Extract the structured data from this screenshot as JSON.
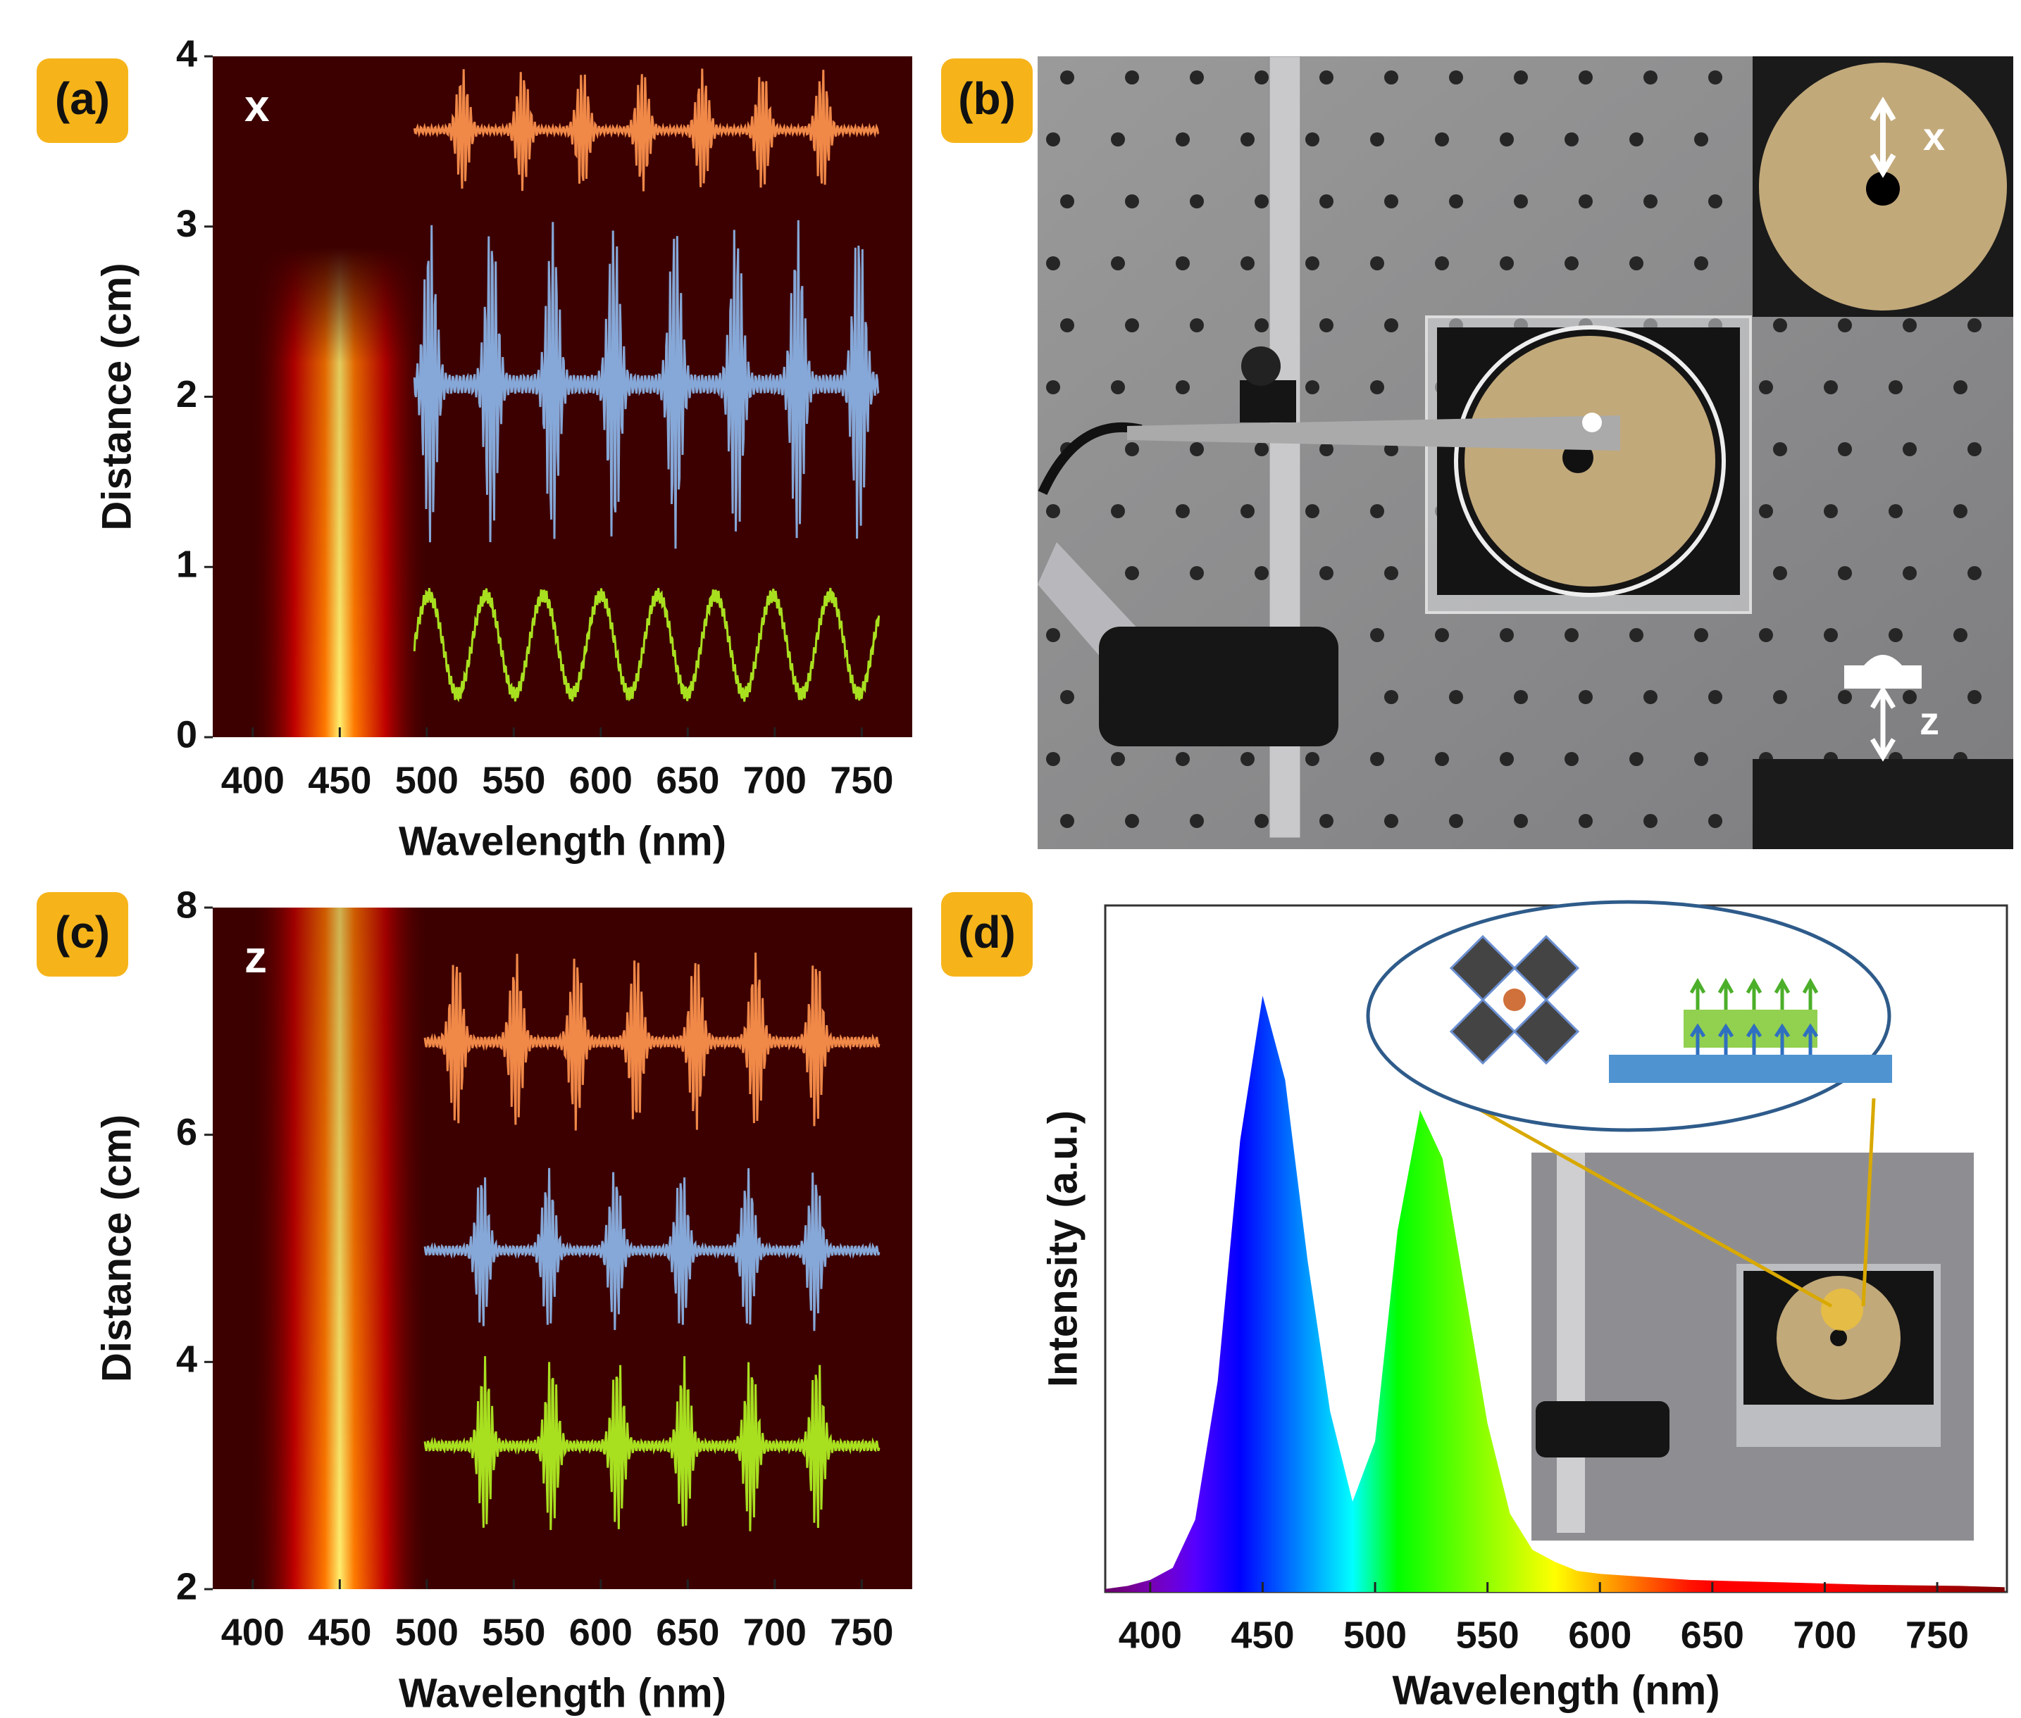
{
  "panel_labels": [
    "(a)",
    "(b)",
    "(c)",
    "(d)"
  ],
  "photo": {
    "insets": [
      "x",
      "z"
    ]
  },
  "chart_data": [
    {
      "type": "heatmap",
      "annotation": "x",
      "xlabel": "Wavelength (nm)",
      "ylabel": "Distance (cm)",
      "peak_wavelength": 450,
      "xlim": [
        377,
        779
      ],
      "xticks": [
        400,
        450,
        500,
        550,
        600,
        650,
        700,
        750
      ],
      "ylim": [
        0,
        4
      ],
      "yticks": [
        0,
        1,
        2,
        3,
        4
      ]
    },
    {
      "type": "heatmap",
      "annotation": "z",
      "xlabel": "Wavelength (nm)",
      "ylabel": "Distance (cm)",
      "peak_wavelength": 450,
      "xlim": [
        377,
        779
      ],
      "xticks": [
        400,
        450,
        500,
        550,
        600,
        650,
        700,
        750
      ],
      "ylim": [
        2,
        8
      ],
      "yticks": [
        2,
        4,
        6,
        8
      ]
    },
    {
      "type": "area",
      "xlabel": "Wavelength (nm)",
      "ylabel": "Intensity (a.u.)",
      "xlim": [
        380,
        781
      ],
      "xticks": [
        400,
        450,
        500,
        550,
        600,
        650,
        700,
        750
      ],
      "ylim": [
        0,
        1.14
      ],
      "x": [
        380,
        390,
        400,
        410,
        420,
        430,
        440,
        450,
        460,
        470,
        480,
        490,
        500,
        510,
        520,
        530,
        540,
        550,
        560,
        570,
        580,
        590,
        600,
        620,
        640,
        660,
        680,
        700,
        720,
        740,
        760,
        780
      ],
      "values": [
        0.005,
        0.01,
        0.02,
        0.04,
        0.12,
        0.35,
        0.75,
        0.99,
        0.85,
        0.55,
        0.3,
        0.15,
        0.25,
        0.6,
        0.8,
        0.72,
        0.5,
        0.28,
        0.13,
        0.07,
        0.05,
        0.035,
        0.03,
        0.025,
        0.02,
        0.018,
        0.016,
        0.014,
        0.012,
        0.011,
        0.01,
        0.008
      ]
    }
  ]
}
